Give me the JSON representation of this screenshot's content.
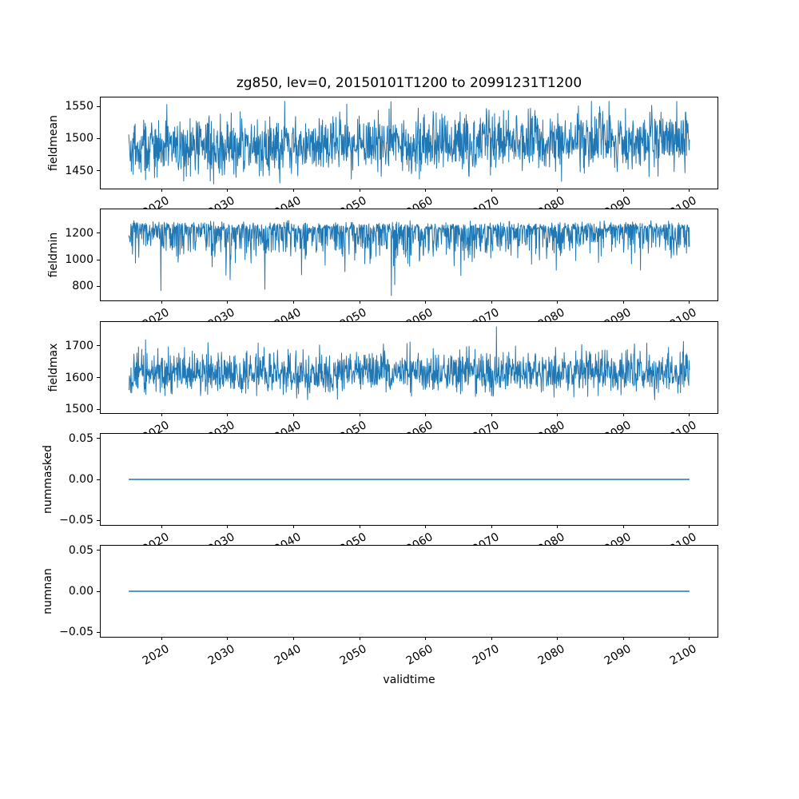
{
  "figure": {
    "title": "zg850, lev=0, 20150101T1200 to 20991231T1200",
    "xlabel": "validtime",
    "background_color": "#ffffff",
    "line_color": "#1f77b4",
    "axis_color": "#000000",
    "text_color": "#000000"
  },
  "chart_data": [
    {
      "type": "line",
      "ylabel": "fieldmean",
      "xlim": [
        2010.75,
        2104.25
      ],
      "x_data_range": [
        2015.0,
        2100.0
      ],
      "xtick_values": [
        2020,
        2030,
        2040,
        2050,
        2060,
        2070,
        2080,
        2090,
        2100
      ],
      "xtick_labels": [
        "2020",
        "2030",
        "2040",
        "2050",
        "2060",
        "2070",
        "2080",
        "2090",
        "2100"
      ],
      "ylim": [
        1422,
        1564
      ],
      "ytick_values": [
        1550,
        1500,
        1450
      ],
      "ytick_labels": [
        "1550",
        "1500",
        "1450"
      ],
      "color": "#1f77b4",
      "line_width": 1,
      "series": {
        "name": "fieldmean",
        "summary": {
          "approx_mean": 1490,
          "approx_min": 1429,
          "approx_max": 1558,
          "trend": "slight upward drift of roughly +15 from 2015 to 2100"
        },
        "gen": {
          "kind": "noisy",
          "seed": 42,
          "n": 1500,
          "base": 1484,
          "trend": 16,
          "sigma": 78,
          "skew_pos": 1,
          "skew_neg": 1,
          "tail_p": 0.01,
          "tail_mag": 45,
          "tail_down": 0.5,
          "clamp": [
            1429,
            1558
          ],
          "peak": {
            "t": 0.825,
            "v": 1558
          }
        }
      }
    },
    {
      "type": "line",
      "ylabel": "fieldmin",
      "xlim": [
        2010.75,
        2104.25
      ],
      "x_data_range": [
        2015.0,
        2100.0
      ],
      "xtick_values": [
        2020,
        2030,
        2040,
        2050,
        2060,
        2070,
        2080,
        2090,
        2100
      ],
      "xtick_labels": [
        "2020",
        "2030",
        "2040",
        "2050",
        "2060",
        "2070",
        "2080",
        "2090",
        "2100"
      ],
      "ylim": [
        692,
        1381
      ],
      "ytick_values": [
        1200,
        1000,
        800
      ],
      "ytick_labels": [
        "1200",
        "1000",
        "800"
      ],
      "color": "#1f77b4",
      "line_width": 1,
      "series": {
        "name": "fieldmin",
        "summary": {
          "approx_mean": 1140,
          "approx_min": 729,
          "approx_max": 1347,
          "trend": "stationary; dense band 1050-1330 with frequent deep downward spikes to 750-950"
        },
        "gen": {
          "kind": "noisy",
          "seed": 7,
          "n": 1500,
          "base": 1230,
          "trend": 0,
          "sigma": 190,
          "skew_pos": 0.5,
          "skew_neg": 1.9,
          "tail_p": 0.015,
          "tail_mag": 430,
          "tail_down": 1,
          "clamp": [
            729,
            1347
          ],
          "peak": {
            "t": 0.468,
            "v": 729
          }
        }
      }
    },
    {
      "type": "line",
      "ylabel": "fieldmax",
      "xlim": [
        2010.75,
        2104.25
      ],
      "x_data_range": [
        2015.0,
        2100.0
      ],
      "xtick_values": [
        2020,
        2030,
        2040,
        2050,
        2060,
        2070,
        2080,
        2090,
        2100
      ],
      "xtick_labels": [
        "2020",
        "2030",
        "2040",
        "2050",
        "2060",
        "2070",
        "2080",
        "2090",
        "2100"
      ],
      "ylim": [
        1488,
        1775
      ],
      "ytick_values": [
        1700,
        1600,
        1500
      ],
      "ytick_labels": [
        "1700",
        "1600",
        "1500"
      ],
      "color": "#1f77b4",
      "line_width": 1,
      "series": {
        "name": "fieldmax",
        "summary": {
          "approx_mean": 1612,
          "approx_min": 1502,
          "approx_max": 1760,
          "trend": "stationary band 1540-1700 with one tall spike near 2071 reaching about 1760"
        },
        "gen": {
          "kind": "noisy",
          "seed": 13,
          "n": 1500,
          "base": 1612,
          "trend": 0,
          "sigma": 120,
          "skew_pos": 1.05,
          "skew_neg": 0.85,
          "tail_p": 0.01,
          "tail_mag": 50,
          "tail_down": 0,
          "clamp": [
            1502,
            1760
          ],
          "peak": {
            "t": 0.656,
            "v": 1760
          }
        }
      }
    },
    {
      "type": "line",
      "ylabel": "nummasked",
      "xlim": [
        2010.75,
        2104.25
      ],
      "x_data_range": [
        2015.0,
        2100.0
      ],
      "xtick_values": [
        2020,
        2030,
        2040,
        2050,
        2060,
        2070,
        2080,
        2090,
        2100
      ],
      "xtick_labels": [
        "2020",
        "2030",
        "2040",
        "2050",
        "2060",
        "2070",
        "2080",
        "2090",
        "2100"
      ],
      "ylim": [
        -0.0556,
        0.0556
      ],
      "ytick_values": [
        0.05,
        0.0,
        -0.05
      ],
      "ytick_labels": [
        "0.05",
        "0.00",
        "−0.05"
      ],
      "color": "#1f77b4",
      "line_width": 1.5,
      "series": {
        "name": "nummasked",
        "summary": {
          "constant_value": 0
        },
        "gen": {
          "kind": "flat",
          "value": 0
        }
      }
    },
    {
      "type": "line",
      "ylabel": "numnan",
      "xlim": [
        2010.75,
        2104.25
      ],
      "x_data_range": [
        2015.0,
        2100.0
      ],
      "xtick_values": [
        2020,
        2030,
        2040,
        2050,
        2060,
        2070,
        2080,
        2090,
        2100
      ],
      "xtick_labels": [
        "2020",
        "2030",
        "2040",
        "2050",
        "2060",
        "2070",
        "2080",
        "2090",
        "2100"
      ],
      "ylim": [
        -0.0556,
        0.0556
      ],
      "ytick_values": [
        0.05,
        0.0,
        -0.05
      ],
      "ytick_labels": [
        "0.05",
        "0.00",
        "−0.05"
      ],
      "color": "#1f77b4",
      "line_width": 1.5,
      "series": {
        "name": "numnan",
        "summary": {
          "constant_value": 0
        },
        "gen": {
          "kind": "flat",
          "value": 0
        }
      }
    }
  ]
}
